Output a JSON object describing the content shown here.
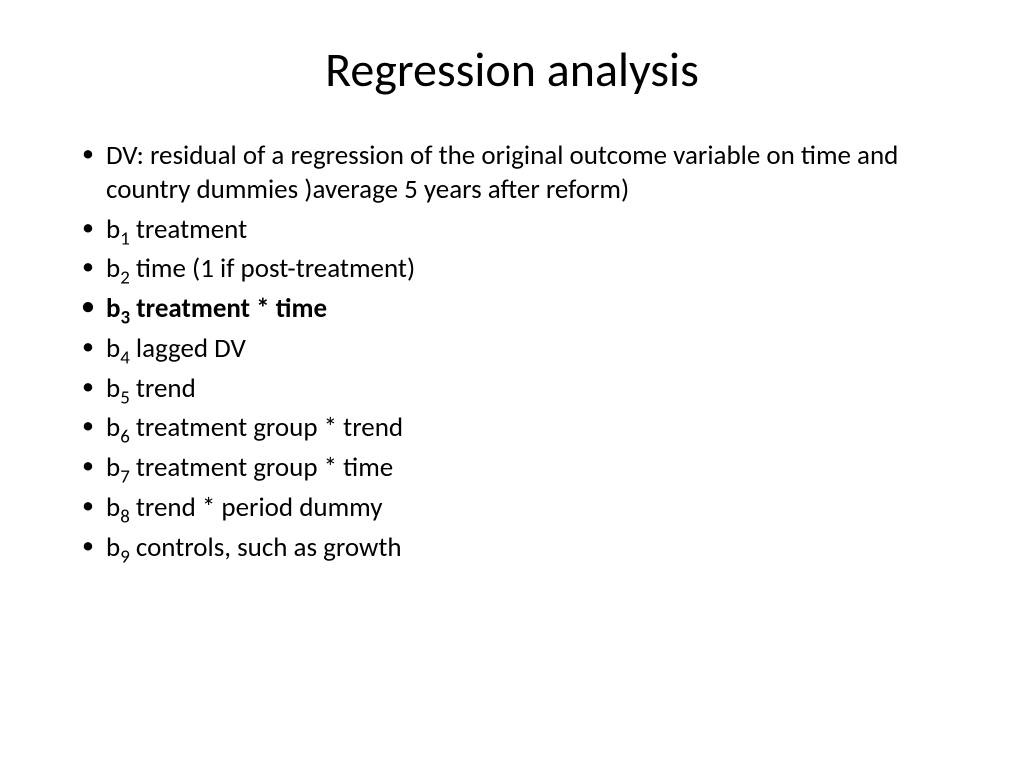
{
  "slide": {
    "title": "Regression analysis",
    "bullets": [
      {
        "text": "DV: residual of a regression of the original outcome variable on time and country dummies )average 5 years after reform)",
        "bold": false,
        "coef": null
      },
      {
        "text": "treatment",
        "bold": false,
        "coef": "1",
        "prefix": "b"
      },
      {
        "text": "time (1 if post-treatment)",
        "bold": false,
        "coef": "2",
        "prefix": "b"
      },
      {
        "text": "treatment * time",
        "bold": true,
        "coef": "3",
        "prefix": "b"
      },
      {
        "text": "lagged DV",
        "bold": false,
        "coef": "4",
        "prefix": "b"
      },
      {
        "text": "trend",
        "bold": false,
        "coef": "5",
        "prefix": "b"
      },
      {
        "text": "treatment group * trend",
        "bold": false,
        "coef": "6",
        "prefix": "b"
      },
      {
        "text": "treatment group * time",
        "bold": false,
        "coef": "7",
        "prefix": "b"
      },
      {
        "text": "trend * period dummy",
        "bold": false,
        "coef": "8",
        "prefix": "b"
      },
      {
        "text": "controls, such as growth",
        "bold": false,
        "coef": "9",
        "prefix": "b"
      }
    ]
  },
  "styling": {
    "background_color": "#ffffff",
    "text_color": "#000000",
    "title_fontsize": 48,
    "body_fontsize": 27,
    "font_family": "Calibri"
  }
}
